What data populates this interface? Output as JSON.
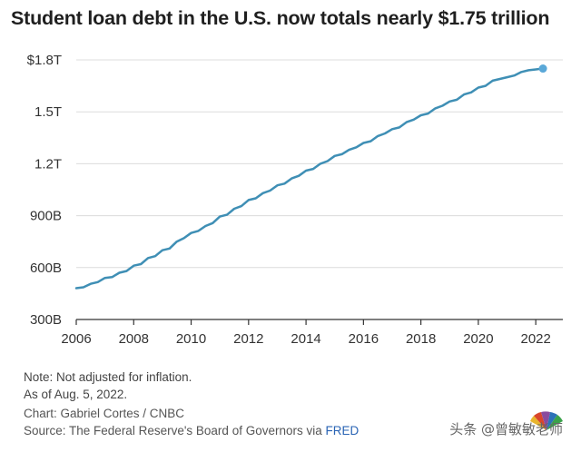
{
  "chart_data": {
    "type": "line",
    "title": "Student loan debt in the U.S. now totals nearly $1.75 trillion",
    "xlabel": "",
    "ylabel": "",
    "x_ticks": [
      "2006",
      "2008",
      "2010",
      "2012",
      "2014",
      "2016",
      "2018",
      "2020",
      "2022"
    ],
    "y_ticks": [
      "$1.8T",
      "1.5T",
      "1.2T",
      "900B",
      "600B",
      "300B"
    ],
    "y_tick_values": [
      1800,
      1500,
      1200,
      900,
      600,
      300
    ],
    "xlim": [
      2006,
      2022.5
    ],
    "ylim": [
      300,
      1800
    ],
    "y_unit": "billions of dollars",
    "grid": true,
    "line_color": "#3f8fb5",
    "end_marker_color": "#5aa8d8",
    "series": [
      {
        "name": "",
        "x": [
          2006.0,
          2006.25,
          2006.5,
          2006.75,
          2007.0,
          2007.25,
          2007.5,
          2007.75,
          2008.0,
          2008.25,
          2008.5,
          2008.75,
          2009.0,
          2009.25,
          2009.5,
          2009.75,
          2010.0,
          2010.25,
          2010.5,
          2010.75,
          2011.0,
          2011.25,
          2011.5,
          2011.75,
          2012.0,
          2012.25,
          2012.5,
          2012.75,
          2013.0,
          2013.25,
          2013.5,
          2013.75,
          2014.0,
          2014.25,
          2014.5,
          2014.75,
          2015.0,
          2015.25,
          2015.5,
          2015.75,
          2016.0,
          2016.25,
          2016.5,
          2016.75,
          2017.0,
          2017.25,
          2017.5,
          2017.75,
          2018.0,
          2018.25,
          2018.5,
          2018.75,
          2019.0,
          2019.25,
          2019.5,
          2019.75,
          2020.0,
          2020.25,
          2020.5,
          2020.75,
          2021.0,
          2021.25,
          2021.5,
          2021.75,
          2022.0,
          2022.25
        ],
        "values": [
          481,
          486,
          506,
          516,
          540,
          545,
          570,
          580,
          611,
          620,
          655,
          666,
          700,
          710,
          750,
          770,
          800,
          812,
          840,
          857,
          895,
          905,
          940,
          955,
          990,
          1000,
          1030,
          1045,
          1075,
          1085,
          1115,
          1130,
          1160,
          1170,
          1200,
          1215,
          1245,
          1255,
          1280,
          1295,
          1320,
          1330,
          1360,
          1375,
          1400,
          1410,
          1440,
          1455,
          1480,
          1490,
          1520,
          1535,
          1560,
          1570,
          1600,
          1612,
          1640,
          1650,
          1680,
          1690,
          1700,
          1710,
          1730,
          1740,
          1745,
          1750
        ]
      }
    ]
  },
  "notes": [
    "Note: Not adjusted for inflation.",
    "As of Aug. 5, 2022."
  ],
  "credit": "Chart: Gabriel Cortes / CNBC",
  "source_prefix": "Source: The Federal Reserve's Board of Governors via ",
  "source_link": "FRED",
  "watermark": "头条 @曾敏敏老师"
}
